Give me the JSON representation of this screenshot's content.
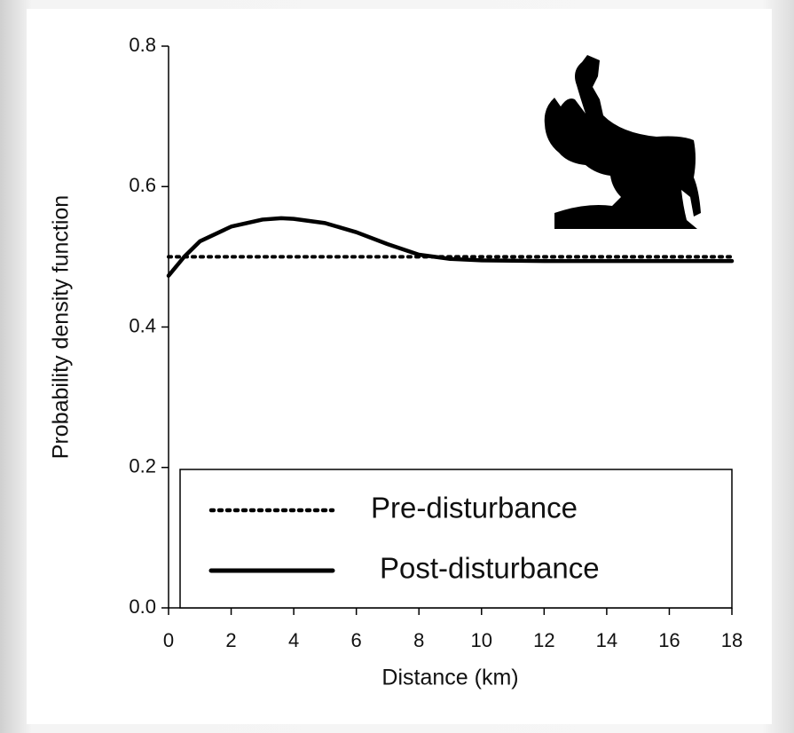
{
  "chart_data": {
    "type": "line",
    "x_label": "Distance (km)",
    "y_label": "Probability density function",
    "x": [
      0,
      0.5,
      1,
      2,
      3,
      3.6,
      4,
      5,
      6,
      7,
      8,
      9,
      10,
      12,
      14,
      16,
      18
    ],
    "series": [
      {
        "name": "Pre-disturbance",
        "color": "#000000",
        "line_style": "dotted",
        "values": [
          0.5,
          0.5,
          0.5,
          0.5,
          0.5,
          0.5,
          0.5,
          0.5,
          0.5,
          0.5,
          0.5,
          0.5,
          0.5,
          0.5,
          0.5,
          0.5,
          0.5
        ]
      },
      {
        "name": "Post-disturbance",
        "color": "#000000",
        "line_style": "solid",
        "values": [
          0.473,
          0.5,
          0.522,
          0.543,
          0.553,
          0.555,
          0.554,
          0.548,
          0.535,
          0.518,
          0.503,
          0.497,
          0.495,
          0.494,
          0.494,
          0.494,
          0.494
        ]
      }
    ],
    "xlim": [
      0,
      18
    ],
    "xticks": [
      0,
      2,
      4,
      6,
      8,
      10,
      12,
      14,
      16,
      18
    ],
    "ylim": [
      0,
      0.8
    ],
    "yticks": [
      {
        "value": 0,
        "label": "0.0"
      },
      0.2,
      0.4,
      0.6,
      0.8
    ],
    "grid": false,
    "legend": "lower center"
  }
}
